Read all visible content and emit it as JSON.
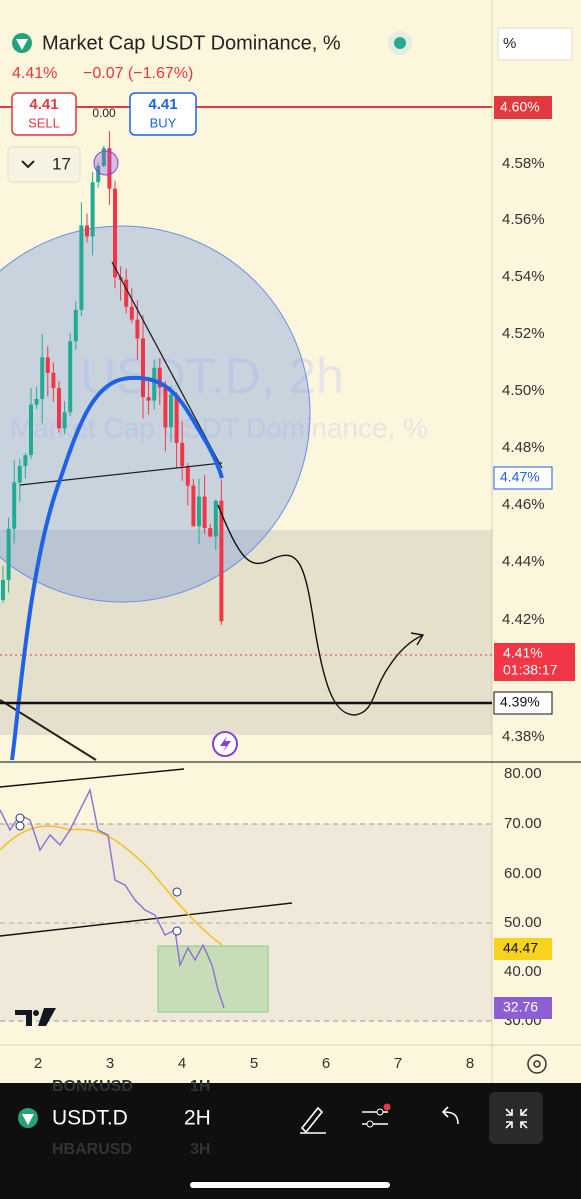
{
  "header": {
    "title": "Market Cap USDT Dominance, %",
    "last_price": "4.41%",
    "change": "−0.07 (−1.67%)"
  },
  "trade_buttons": {
    "sell_price": "4.41",
    "sell_label": "SELL",
    "buy_price": "4.41",
    "buy_label": "BUY"
  },
  "spread": "0.00",
  "indicator_count": "17",
  "scale_mode": "%",
  "watermark": {
    "symbol": "USDT.D, 2h",
    "name": "Market Cap USDT Dominance, %"
  },
  "price_axis": {
    "ticks": [
      "4.58%",
      "4.56%",
      "4.54%",
      "4.52%",
      "4.50%",
      "4.48%",
      "4.46%",
      "4.44%",
      "4.42%",
      "4.38%"
    ]
  },
  "price_tags": {
    "alert": "4.60%",
    "moving_average": "4.47%",
    "last": "4.41%",
    "countdown": "01:38:17",
    "level": "4.39%"
  },
  "rsi_axis": {
    "ticks": [
      "80.00",
      "70.00",
      "60.00",
      "50.00",
      "40.00",
      "30.00"
    ],
    "tags": {
      "signal": "44.47",
      "rsi": "32.76"
    }
  },
  "time_axis": [
    "2",
    "3",
    "4",
    "5",
    "6",
    "7",
    "8"
  ],
  "toolbar": {
    "symbol": "USDT.D",
    "interval": "2H"
  },
  "watchlist_behind": [
    {
      "symbol": "BONKUSD",
      "interval": "1H"
    },
    {
      "symbol": "HBARUSD",
      "interval": "3H"
    }
  ]
}
